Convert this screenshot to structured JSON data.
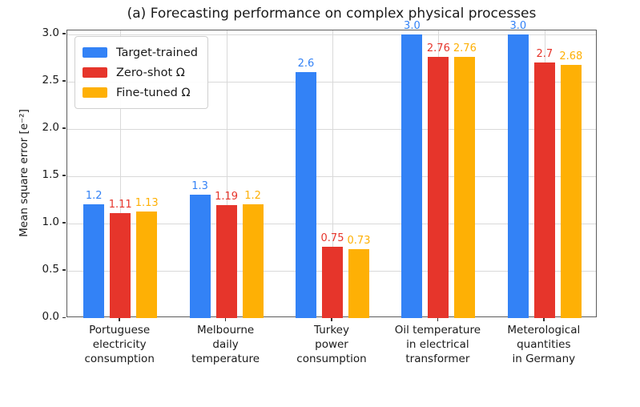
{
  "chart_data": {
    "type": "bar",
    "title": "(a) Forecasting performance on complex physical processes",
    "xlabel": "",
    "ylabel": "Mean square error [e⁻²]",
    "categories": [
      "Portuguese\nelectricity\nconsumption",
      "Melbourne\ndaily\ntemperature",
      "Turkey\npower\nconsumption",
      "Oil temperature\nin electrical\ntransformer",
      "Meterological\nquantities\nin Germany"
    ],
    "series": [
      {
        "name": "Target-trained",
        "color": "#3382f6",
        "values": [
          1.2,
          1.3,
          2.6,
          3.0,
          3.0
        ],
        "labels": [
          "1.2",
          "1.3",
          "2.6",
          "3.0",
          "3.0"
        ]
      },
      {
        "name": "Zero-shot Ω",
        "color": "#e6352b",
        "values": [
          1.11,
          1.19,
          0.75,
          2.76,
          2.7
        ],
        "labels": [
          "1.11",
          "1.19",
          "0.75",
          "2.76",
          "2.7"
        ]
      },
      {
        "name": "Fine-tuned Ω",
        "color": "#feb005",
        "values": [
          1.13,
          1.2,
          0.73,
          2.76,
          2.68
        ],
        "labels": [
          "1.13",
          "1.2",
          "0.73",
          "2.76",
          "2.68"
        ]
      }
    ],
    "yticks": [
      "0.0",
      "0.5",
      "1.0",
      "1.5",
      "2.0",
      "2.5",
      "3.0"
    ],
    "ytick_values": [
      0,
      0.5,
      1,
      1.5,
      2,
      2.5,
      3
    ],
    "ylim": [
      0,
      3.04
    ],
    "grid": true,
    "legend_position": "upper left",
    "background_color": "#ffffff",
    "grid_color": "#d9d9d9"
  }
}
